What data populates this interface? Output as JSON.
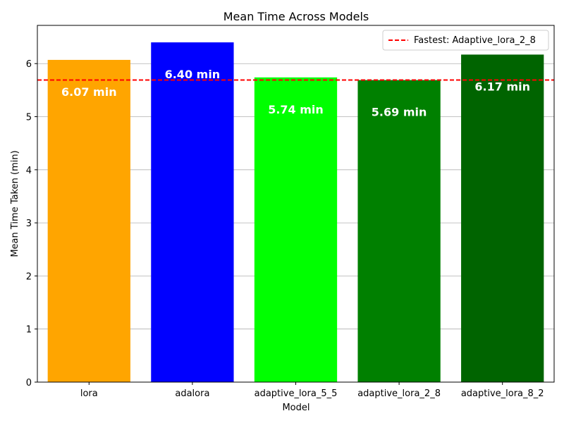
{
  "chart_data": {
    "type": "bar",
    "title": "Mean Time Across Models",
    "xlabel": "Model",
    "ylabel": "Mean Time Taken (min)",
    "categories": [
      "lora",
      "adalora",
      "adaptive_lora_5_5",
      "adaptive_lora_2_8",
      "adaptive_lora_8_2"
    ],
    "values": [
      6.07,
      6.4,
      5.74,
      5.69,
      6.17
    ],
    "data_labels": [
      "6.07 min",
      "6.40 min",
      "5.74 min",
      "5.69 min",
      "6.17 min"
    ],
    "colors": [
      "#FFA500",
      "#0000FF",
      "#00FF00",
      "#008000",
      "#006400"
    ],
    "ylim": [
      0,
      6.72
    ],
    "yticks": [
      0,
      1,
      2,
      3,
      4,
      5,
      6
    ],
    "grid": "horizontal",
    "reference_line": {
      "value": 5.69,
      "label": "Fastest: Adaptive_lora_2_8",
      "color": "#FF0000",
      "style": "dashed"
    },
    "legend_position": "top-right"
  }
}
